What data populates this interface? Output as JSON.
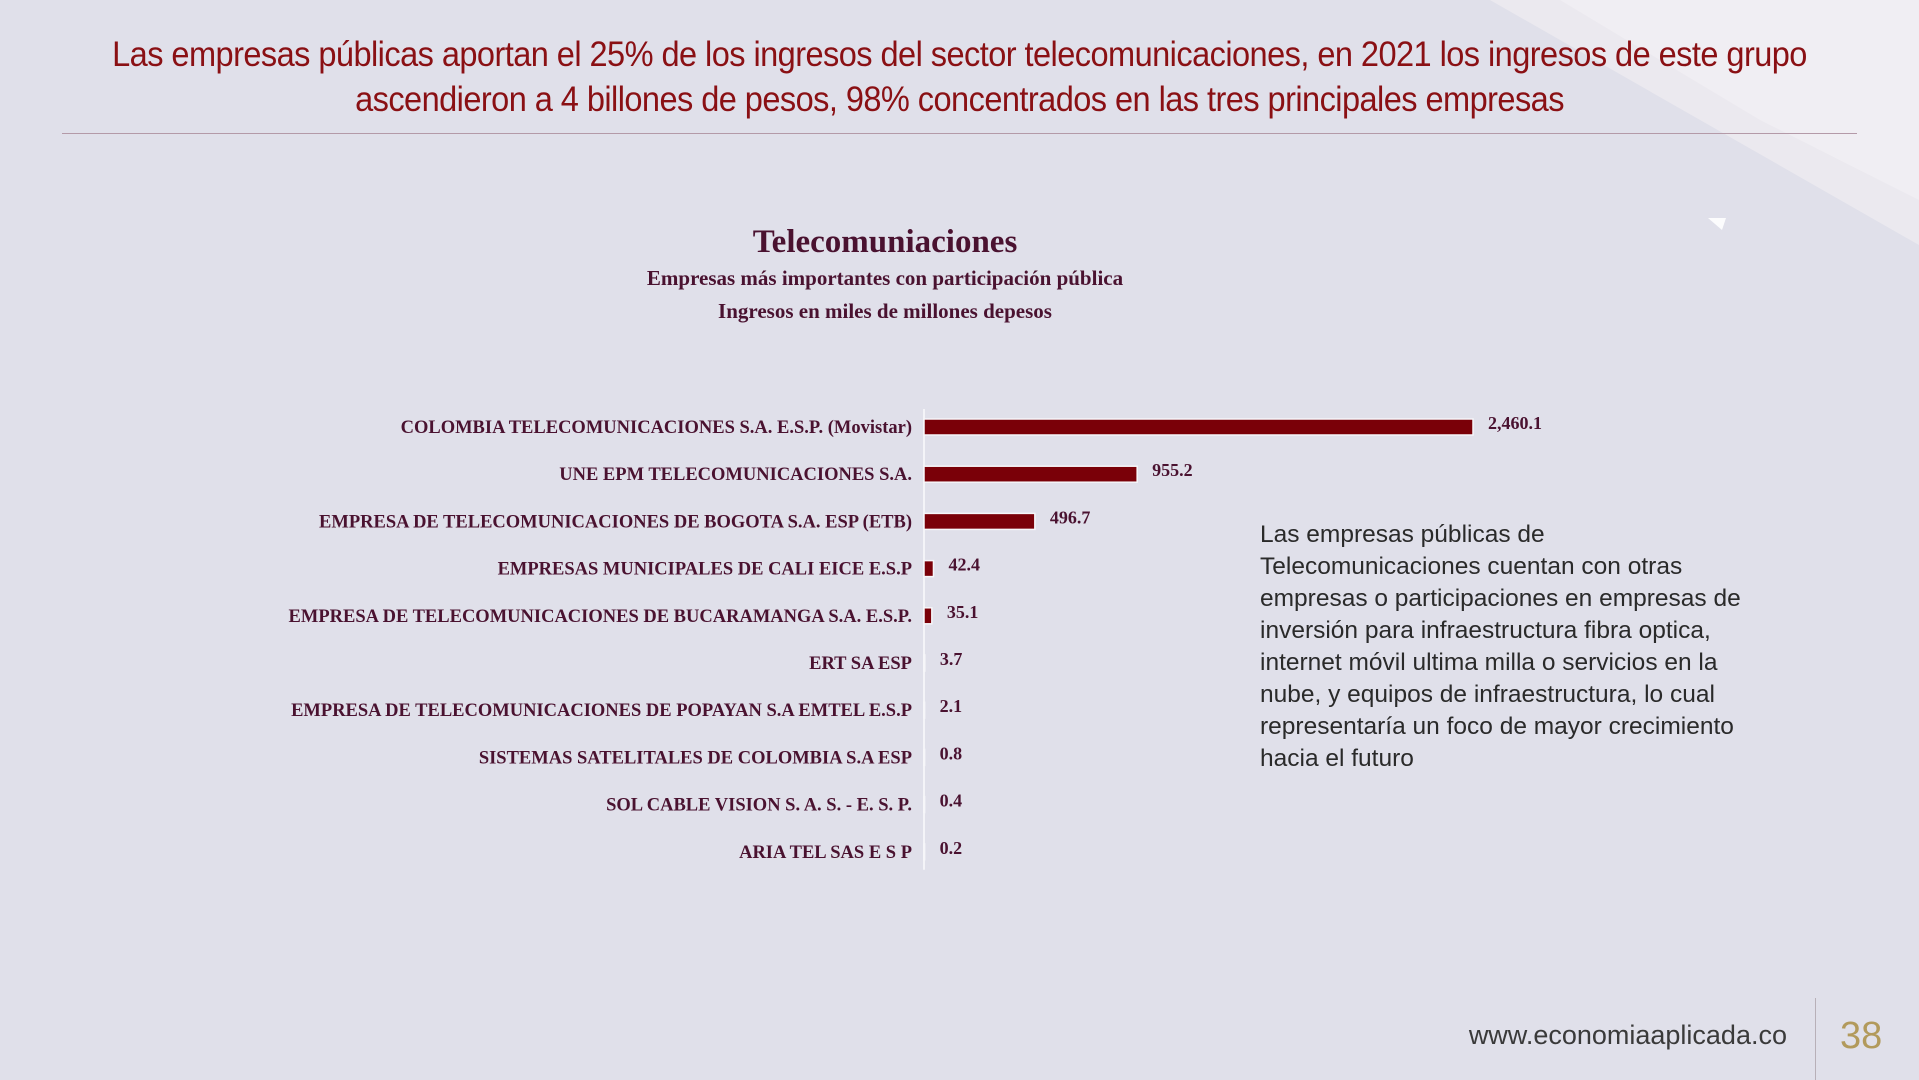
{
  "slide": {
    "headline": "Las empresas públicas aportan el 25% de los ingresos del sector telecomunicaciones, en 2021 los ingresos de este grupo ascendieron a 4 billones de pesos, 98% concentrados en las tres principales empresas",
    "note": "Las empresas públicas de Telecomunicaciones cuentan con otras empresas o participaciones en empresas de inversión para infraestructura fibra optica, internet móvil ultima milla o servicios en la nube, y equipos de infraestructura, lo cual representaría un foco de mayor crecimiento hacia el futuro",
    "footer_url": "www.economiaaplicada.co",
    "page_number": "38"
  },
  "colors": {
    "background": "#e0e0ea",
    "headline": "#8a1014",
    "bar": "#7a0008",
    "chart_text": "#4a1230",
    "page_number": "#b29a5c"
  },
  "chart_data": {
    "type": "bar",
    "orientation": "horizontal",
    "title": "Telecomuniaciones",
    "subtitle": "Empresas más importantes con participación pública",
    "units": "Ingresos en miles de millones depesos",
    "categories": [
      "COLOMBIA TELECOMUNICACIONES S.A. E.S.P. (Movistar)",
      "UNE EPM TELECOMUNICACIONES S.A.",
      "EMPRESA DE TELECOMUNICACIONES DE BOGOTA S.A. ESP (ETB)",
      "EMPRESAS MUNICIPALES DE CALI EICE E.S.P",
      "EMPRESA DE TELECOMUNICACIONES DE BUCARAMANGA S.A. E.S.P.",
      "ERT SA ESP",
      "EMPRESA DE TELECOMUNICACIONES DE POPAYAN S.A EMTEL E.S.P",
      "SISTEMAS SATELITALES DE COLOMBIA S.A ESP",
      "SOL CABLE VISION S. A. S. - E. S. P.",
      "ARIA TEL SAS E S P"
    ],
    "values": [
      2460.1,
      955.2,
      496.7,
      42.4,
      35.1,
      3.7,
      2.1,
      0.8,
      0.4,
      0.2
    ],
    "value_labels": [
      "2,460.1",
      "955.2",
      "496.7",
      "42.4",
      "35.1",
      "3.7",
      "2.1",
      "0.8",
      "0.4",
      "0.2"
    ],
    "xlim": [
      0,
      2460.1
    ],
    "grid": false,
    "legend": "none"
  }
}
